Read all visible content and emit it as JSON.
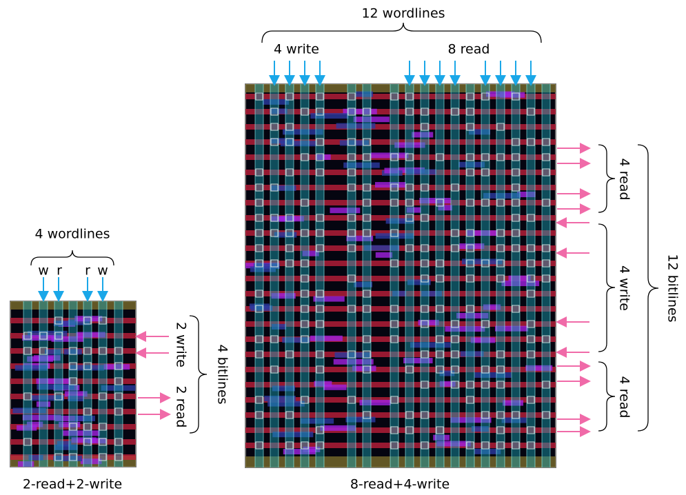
{
  "small_cell": {
    "wordlines_label": "4 wordlines",
    "wordline_labels": [
      "w",
      "r",
      "r",
      "w"
    ],
    "bitline_groups": [
      "2 write",
      "2 read"
    ],
    "bitlines_label": "4 bitlines",
    "caption": "2-read+2-write"
  },
  "large_cell": {
    "wordlines_label": "12 wordlines",
    "wordline_groups": [
      "4 write",
      "8 read"
    ],
    "bitline_groups": [
      "4 read",
      "4 write",
      "4 read"
    ],
    "bitlines_label": "12 bitlines",
    "caption": "8-read+4-write"
  }
}
